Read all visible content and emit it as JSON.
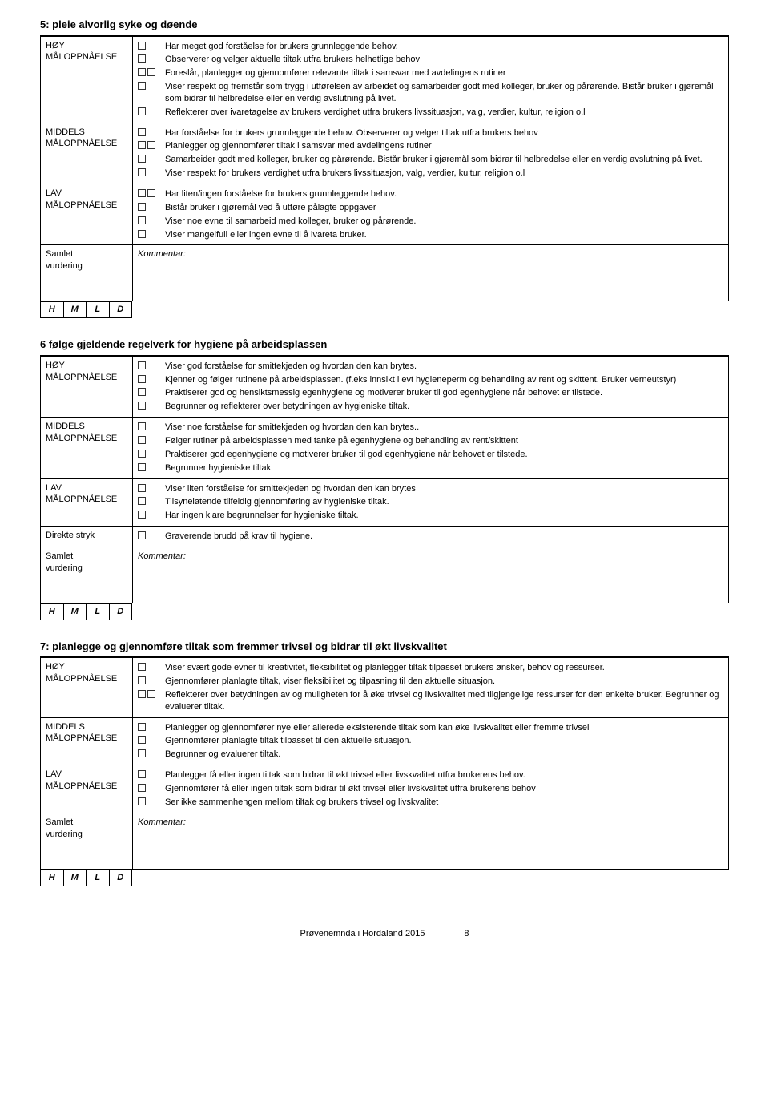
{
  "sections": [
    {
      "title": "5: pleie alvorlig syke og døende",
      "groups": [
        {
          "label": "HØY\nMÅLOPPNÅELSE",
          "items": [
            {
              "cb": 1,
              "text": "Har meget god forståelse for brukers grunnleggende behov."
            },
            {
              "cb": 1,
              "text": "Observerer og velger aktuelle tiltak utfra brukers helhetlige behov"
            },
            {
              "cb": 2,
              "text": "Foreslår, planlegger og gjennomfører relevante tiltak i samsvar med avdelingens rutiner"
            },
            {
              "cb": 1,
              "text": "Viser respekt og fremstår som trygg i utførelsen av arbeidet og samarbeider godt med kolleger, bruker og pårørende. Bistår bruker i gjøremål som bidrar til helbredelse eller en verdig avslutning på livet."
            },
            {
              "cb": 1,
              "text": "Reflekterer over ivaretagelse av brukers verdighet utfra brukers livssituasjon, valg, verdier, kultur, religion o.l"
            }
          ]
        },
        {
          "label": "MIDDELS\nMÅLOPPNÅELSE",
          "items": [
            {
              "cb": 1,
              "text": "Har forståelse for brukers grunnleggende behov. Observerer og velger tiltak utfra brukers behov"
            },
            {
              "cb": 2,
              "text": "Planlegger og gjennomfører tiltak i samsvar med avdelingens rutiner"
            },
            {
              "cb": 1,
              "text": "Samarbeider godt med kolleger, bruker og pårørende. Bistår bruker i gjøremål som bidrar til helbredelse eller en verdig avslutning på livet."
            },
            {
              "cb": 1,
              "text": "Viser respekt for brukers verdighet utfra brukers livssituasjon, valg, verdier, kultur, religion o.l"
            }
          ]
        },
        {
          "label": "LAV\nMÅLOPPNÅELSE",
          "items": [
            {
              "cb": 2,
              "text": "Har liten/ingen forståelse for brukers grunnleggende behov."
            },
            {
              "cb": 1,
              "text": "Bistår bruker i gjøremål ved å utføre pålagte oppgaver"
            },
            {
              "cb": 1,
              "text": "Viser noe evne til samarbeid med kolleger, bruker og pårørende."
            },
            {
              "cb": 1,
              "text": "Viser mangelfull eller ingen evne til å ivareta bruker."
            }
          ]
        }
      ],
      "comment_label": "Samlet\nvurdering",
      "comment_word": "Kommentar:",
      "hmlld": [
        "H",
        "M",
        "L",
        "D"
      ]
    },
    {
      "title": "6 følge gjeldende regelverk for hygiene på arbeidsplassen",
      "groups": [
        {
          "label": "HØY\nMÅLOPPNÅELSE",
          "items": [
            {
              "cb": 1,
              "text": "Viser god forståelse for smittekjeden og hvordan den kan brytes."
            },
            {
              "cb": 1,
              "text": "Kjenner og følger rutinene på arbeidsplassen. (f.eks innsikt i evt hygieneperm og behandling av rent og skittent. Bruker verneutstyr)"
            },
            {
              "cb": 1,
              "text": "Praktiserer god og hensiktsmessig egenhygiene og motiverer bruker til god egenhygiene når behovet er tilstede."
            },
            {
              "cb": 1,
              "text": "Begrunner og reflekterer over betydningen av hygieniske tiltak."
            }
          ]
        },
        {
          "label": "MIDDELS\nMÅLOPPNÅELSE",
          "items": [
            {
              "cb": 1,
              "text": "Viser noe forståelse for smittekjeden og hvordan den kan brytes.."
            },
            {
              "cb": 1,
              "text": "Følger rutiner på arbeidsplassen med tanke på egenhygiene og behandling av rent/skittent"
            },
            {
              "cb": 1,
              "text": "Praktiserer god egenhygiene og motiverer bruker til god egenhygiene når behovet er tilstede."
            },
            {
              "cb": 1,
              "text": "Begrunner hygieniske tiltak"
            }
          ]
        },
        {
          "label": "LAV\nMÅLOPPNÅELSE",
          "items": [
            {
              "cb": 1,
              "text": "Viser liten forståelse for smittekjeden og hvordan den kan brytes"
            },
            {
              "cb": 1,
              "text": "Tilsynelatende tilfeldig gjennomføring av hygieniske tiltak."
            },
            {
              "cb": 1,
              "text": "Har ingen klare begrunnelser for hygieniske tiltak."
            }
          ]
        },
        {
          "label": "Direkte stryk",
          "items": [
            {
              "cb": 1,
              "text": "Graverende brudd på krav til hygiene."
            }
          ]
        }
      ],
      "comment_label": "Samlet\nvurdering",
      "comment_word": "Kommentar:",
      "hmlld": [
        "H",
        "M",
        "L",
        "D"
      ]
    },
    {
      "title": "7: planlegge og gjennomføre tiltak som fremmer trivsel og bidrar til økt livskvalitet",
      "groups": [
        {
          "label": "HØY\nMÅLOPPNÅELSE",
          "items": [
            {
              "cb": 1,
              "text": "Viser svært gode evner til kreativitet, fleksibilitet og planlegger tiltak tilpasset brukers ønsker, behov og ressurser."
            },
            {
              "cb": 1,
              "text": "Gjennomfører planlagte tiltak, viser fleksibilitet og tilpasning til den aktuelle situasjon."
            },
            {
              "cb": 2,
              "text": "Reflekterer over betydningen av og muligheten for å øke trivsel og livskvalitet med tilgjengelige ressurser for den enkelte bruker. Begrunner og evaluerer tiltak."
            }
          ]
        },
        {
          "label": "MIDDELS\nMÅLOPPNÅELSE",
          "items": [
            {
              "cb": 1,
              "text": "Planlegger og gjennomfører nye eller allerede eksisterende tiltak som kan øke livskvalitet eller fremme trivsel"
            },
            {
              "cb": 1,
              "text": "Gjennomfører planlagte tiltak tilpasset til den aktuelle situasjon."
            },
            {
              "cb": 1,
              "text": "Begrunner og evaluerer tiltak."
            }
          ]
        },
        {
          "label": "LAV\nMÅLOPPNÅELSE",
          "items": [
            {
              "cb": 1,
              "text": "Planlegger få eller ingen tiltak som bidrar til økt trivsel eller livskvalitet utfra brukerens behov."
            },
            {
              "cb": 1,
              "text": "Gjennomfører få eller ingen tiltak som bidrar til økt trivsel eller livskvalitet utfra brukerens behov"
            },
            {
              "cb": 1,
              "text": "Ser ikke sammenhengen mellom tiltak og brukers trivsel og livskvalitet"
            }
          ]
        }
      ],
      "comment_label": "Samlet\nvurdering",
      "comment_word": "Kommentar:",
      "hmlld": [
        "H",
        "M",
        "L",
        "D"
      ]
    }
  ],
  "footer": "Prøvenemnda i Hordaland 2015",
  "page_number": "8"
}
